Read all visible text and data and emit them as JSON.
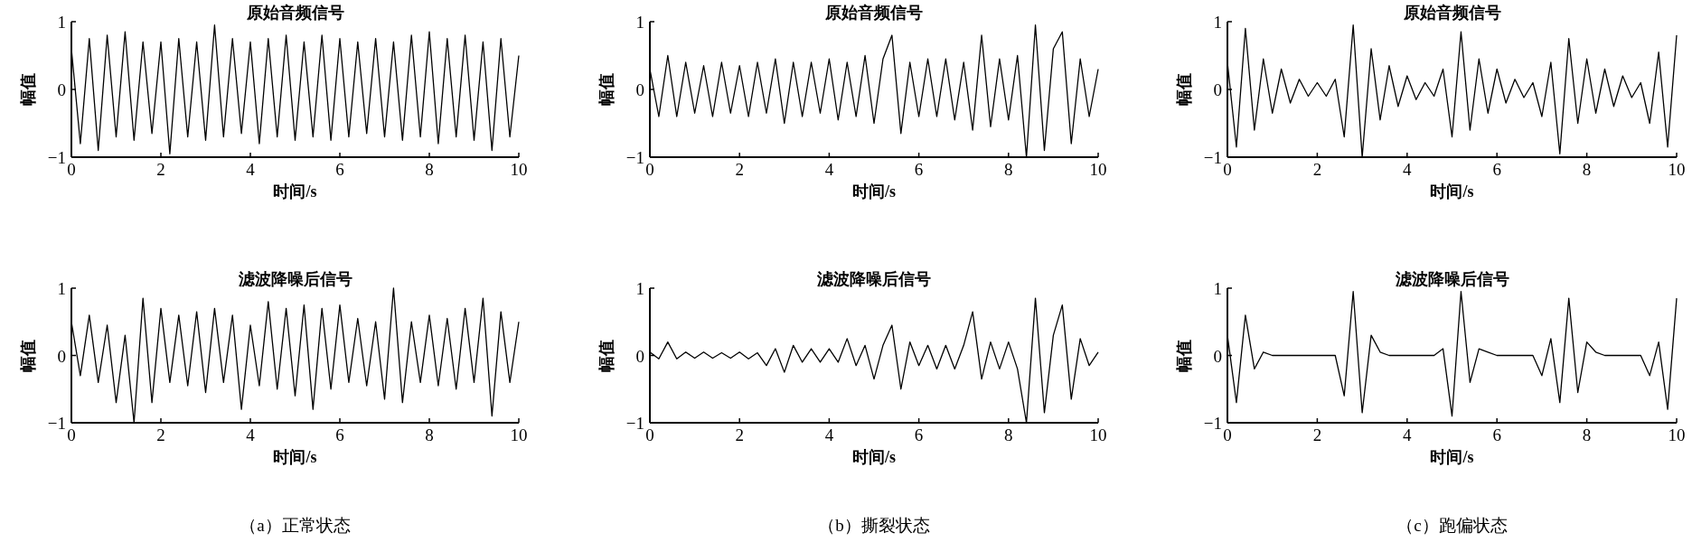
{
  "chart_data": [
    {
      "type": "line",
      "title": "原始音频信号",
      "xlabel": "时间/s",
      "ylabel": "幅值",
      "xlim": [
        0,
        10
      ],
      "ylim": [
        -1,
        1
      ],
      "xticks": [
        0,
        2,
        4,
        6,
        8,
        10
      ],
      "yticks": [
        -1,
        0,
        1
      ],
      "grid": false,
      "x": [
        0,
        0.2,
        0.4,
        0.6,
        0.8,
        1,
        1.2,
        1.4,
        1.6,
        1.8,
        2,
        2.2,
        2.4,
        2.6,
        2.8,
        3,
        3.2,
        3.4,
        3.6,
        3.8,
        4,
        4.2,
        4.4,
        4.6,
        4.8,
        5,
        5.2,
        5.4,
        5.6,
        5.8,
        6,
        6.2,
        6.4,
        6.6,
        6.8,
        7,
        7.2,
        7.4,
        7.6,
        7.8,
        8,
        8.2,
        8.4,
        8.6,
        8.8,
        9,
        9.2,
        9.4,
        9.6,
        9.8,
        10
      ],
      "series": [
        {
          "color": "#000000",
          "values": [
            0.6,
            -0.8,
            0.75,
            -0.9,
            0.8,
            -0.7,
            0.85,
            -0.75,
            0.7,
            -0.65,
            0.7,
            -0.95,
            0.75,
            -0.7,
            0.7,
            -0.75,
            0.95,
            -0.7,
            0.75,
            -0.65,
            0.7,
            -0.8,
            0.75,
            -0.7,
            0.8,
            -0.75,
            0.7,
            -0.7,
            0.8,
            -0.75,
            0.75,
            -0.7,
            0.7,
            -0.65,
            0.75,
            -0.7,
            0.7,
            -0.75,
            0.8,
            -0.7,
            0.85,
            -0.8,
            0.75,
            -0.7,
            0.8,
            -0.75,
            0.7,
            -0.9,
            0.75,
            -0.7,
            0.5
          ]
        }
      ]
    },
    {
      "type": "line",
      "title": "原始音频信号",
      "xlabel": "时间/s",
      "ylabel": "幅值",
      "xlim": [
        0,
        10
      ],
      "ylim": [
        -1,
        1
      ],
      "xticks": [
        0,
        2,
        4,
        6,
        8,
        10
      ],
      "yticks": [
        -1,
        0,
        1
      ],
      "grid": false,
      "x": [
        0,
        0.2,
        0.4,
        0.6,
        0.8,
        1,
        1.2,
        1.4,
        1.6,
        1.8,
        2,
        2.2,
        2.4,
        2.6,
        2.8,
        3,
        3.2,
        3.4,
        3.6,
        3.8,
        4,
        4.2,
        4.4,
        4.6,
        4.8,
        5,
        5.2,
        5.4,
        5.6,
        5.8,
        6,
        6.2,
        6.4,
        6.6,
        6.8,
        7,
        7.2,
        7.4,
        7.6,
        7.8,
        8,
        8.2,
        8.4,
        8.6,
        8.8,
        9,
        9.2,
        9.4,
        9.6,
        9.8,
        10
      ],
      "series": [
        {
          "color": "#000000",
          "values": [
            0.3,
            -0.4,
            0.5,
            -0.4,
            0.4,
            -0.35,
            0.35,
            -0.4,
            0.4,
            -0.35,
            0.35,
            -0.4,
            0.4,
            -0.35,
            0.45,
            -0.5,
            0.4,
            -0.4,
            0.4,
            -0.35,
            0.45,
            -0.45,
            0.4,
            -0.4,
            0.5,
            -0.5,
            0.45,
            0.8,
            -0.65,
            0.4,
            -0.4,
            0.45,
            -0.4,
            0.45,
            -0.45,
            0.4,
            -0.6,
            0.8,
            -0.55,
            0.45,
            -0.45,
            0.5,
            -1.0,
            0.95,
            -0.9,
            0.6,
            0.85,
            -0.8,
            0.45,
            -0.4,
            0.3
          ]
        }
      ]
    },
    {
      "type": "line",
      "title": "原始音频信号",
      "xlabel": "时间/s",
      "ylabel": "幅值",
      "xlim": [
        0,
        10
      ],
      "ylim": [
        -1,
        1
      ],
      "xticks": [
        0,
        2,
        4,
        6,
        8,
        10
      ],
      "yticks": [
        -1,
        0,
        1
      ],
      "grid": false,
      "x": [
        0,
        0.2,
        0.4,
        0.6,
        0.8,
        1,
        1.2,
        1.4,
        1.6,
        1.8,
        2,
        2.2,
        2.4,
        2.6,
        2.8,
        3,
        3.2,
        3.4,
        3.6,
        3.8,
        4,
        4.2,
        4.4,
        4.6,
        4.8,
        5,
        5.2,
        5.4,
        5.6,
        5.8,
        6,
        6.2,
        6.4,
        6.6,
        6.8,
        7,
        7.2,
        7.4,
        7.6,
        7.8,
        8,
        8.2,
        8.4,
        8.6,
        8.8,
        9,
        9.2,
        9.4,
        9.6,
        9.8,
        10
      ],
      "series": [
        {
          "color": "#000000",
          "values": [
            0.4,
            -0.85,
            0.9,
            -0.6,
            0.45,
            -0.35,
            0.3,
            -0.2,
            0.15,
            -0.1,
            0.1,
            -0.1,
            0.15,
            -0.7,
            0.95,
            -1.0,
            0.6,
            -0.45,
            0.35,
            -0.25,
            0.2,
            -0.15,
            0.1,
            -0.1,
            0.3,
            -0.7,
            0.85,
            -0.6,
            0.45,
            -0.35,
            0.3,
            -0.2,
            0.15,
            -0.12,
            0.1,
            -0.4,
            0.4,
            -0.95,
            0.75,
            -0.5,
            0.45,
            -0.35,
            0.3,
            -0.25,
            0.2,
            -0.12,
            0.1,
            -0.5,
            0.55,
            -0.85,
            0.8
          ]
        }
      ]
    },
    {
      "type": "line",
      "title": "滤波降噪后信号",
      "xlabel": "时间/s",
      "ylabel": "幅值",
      "xlim": [
        0,
        10
      ],
      "ylim": [
        -1,
        1
      ],
      "xticks": [
        0,
        2,
        4,
        6,
        8,
        10
      ],
      "yticks": [
        -1,
        0,
        1
      ],
      "grid": false,
      "annotations": [
        "（a）正常状态"
      ],
      "x": [
        0,
        0.2,
        0.4,
        0.6,
        0.8,
        1,
        1.2,
        1.4,
        1.6,
        1.8,
        2,
        2.2,
        2.4,
        2.6,
        2.8,
        3,
        3.2,
        3.4,
        3.6,
        3.8,
        4,
        4.2,
        4.4,
        4.6,
        4.8,
        5,
        5.2,
        5.4,
        5.6,
        5.8,
        6,
        6.2,
        6.4,
        6.6,
        6.8,
        7,
        7.2,
        7.4,
        7.6,
        7.8,
        8,
        8.2,
        8.4,
        8.6,
        8.8,
        9,
        9.2,
        9.4,
        9.6,
        9.8,
        10
      ],
      "series": [
        {
          "color": "#000000",
          "values": [
            0.5,
            -0.3,
            0.6,
            -0.4,
            0.45,
            -0.7,
            0.3,
            -1.0,
            0.85,
            -0.7,
            0.7,
            -0.4,
            0.6,
            -0.45,
            0.65,
            -0.55,
            0.7,
            -0.4,
            0.6,
            -0.8,
            0.45,
            -0.45,
            0.8,
            -0.5,
            0.7,
            -0.6,
            0.75,
            -0.8,
            0.7,
            -0.5,
            0.75,
            -0.4,
            0.55,
            -0.45,
            0.5,
            -0.65,
            1.0,
            -0.7,
            0.5,
            -0.4,
            0.6,
            -0.45,
            0.55,
            -0.5,
            0.7,
            -0.4,
            0.85,
            -0.9,
            0.65,
            -0.4,
            0.5
          ]
        }
      ]
    },
    {
      "type": "line",
      "title": "滤波降噪后信号",
      "xlabel": "时间/s",
      "ylabel": "幅值",
      "xlim": [
        0,
        10
      ],
      "ylim": [
        -1,
        1
      ],
      "xticks": [
        0,
        2,
        4,
        6,
        8,
        10
      ],
      "yticks": [
        -1,
        0,
        1
      ],
      "grid": false,
      "annotations": [
        "（b）撕裂状态"
      ],
      "x": [
        0,
        0.2,
        0.4,
        0.6,
        0.8,
        1,
        1.2,
        1.4,
        1.6,
        1.8,
        2,
        2.2,
        2.4,
        2.6,
        2.8,
        3,
        3.2,
        3.4,
        3.6,
        3.8,
        4,
        4.2,
        4.4,
        4.6,
        4.8,
        5,
        5.2,
        5.4,
        5.6,
        5.8,
        6,
        6.2,
        6.4,
        6.6,
        6.8,
        7,
        7.2,
        7.4,
        7.6,
        7.8,
        8,
        8.2,
        8.4,
        8.6,
        8.8,
        9,
        9.2,
        9.4,
        9.6,
        9.8,
        10
      ],
      "series": [
        {
          "color": "#000000",
          "values": [
            0.05,
            -0.05,
            0.2,
            -0.05,
            0.05,
            -0.04,
            0.05,
            -0.04,
            0.04,
            -0.04,
            0.05,
            -0.05,
            0.04,
            -0.15,
            0.1,
            -0.25,
            0.15,
            -0.1,
            0.1,
            -0.1,
            0.1,
            -0.1,
            0.25,
            -0.15,
            0.15,
            -0.35,
            0.15,
            0.45,
            -0.5,
            0.2,
            -0.15,
            0.15,
            -0.2,
            0.15,
            -0.2,
            0.15,
            0.65,
            -0.35,
            0.2,
            -0.2,
            0.2,
            -0.2,
            -1.0,
            0.85,
            -0.85,
            0.3,
            0.75,
            -0.65,
            0.25,
            -0.15,
            0.05
          ]
        }
      ]
    },
    {
      "type": "line",
      "title": "滤波降噪后信号",
      "xlabel": "时间/s",
      "ylabel": "幅值",
      "xlim": [
        0,
        10
      ],
      "ylim": [
        -1,
        1
      ],
      "xticks": [
        0,
        2,
        4,
        6,
        8,
        10
      ],
      "yticks": [
        -1,
        0,
        1
      ],
      "grid": false,
      "annotations": [
        "（c）跑偏状态"
      ],
      "x": [
        0,
        0.2,
        0.4,
        0.6,
        0.8,
        1,
        1.2,
        1.4,
        1.6,
        1.8,
        2,
        2.2,
        2.4,
        2.6,
        2.8,
        3,
        3.2,
        3.4,
        3.6,
        3.8,
        4,
        4.2,
        4.4,
        4.6,
        4.8,
        5,
        5.2,
        5.4,
        5.6,
        5.8,
        6,
        6.2,
        6.4,
        6.6,
        6.8,
        7,
        7.2,
        7.4,
        7.6,
        7.8,
        8,
        8.2,
        8.4,
        8.6,
        8.8,
        9,
        9.2,
        9.4,
        9.6,
        9.8,
        10
      ],
      "series": [
        {
          "color": "#000000",
          "values": [
            0.3,
            -0.7,
            0.6,
            -0.2,
            0.05,
            0,
            0,
            0,
            0,
            0,
            0,
            0,
            0,
            -0.6,
            0.95,
            -0.85,
            0.3,
            0.05,
            0,
            0,
            0,
            0,
            0,
            0,
            0.1,
            -0.9,
            0.95,
            -0.4,
            0.1,
            0.05,
            0,
            0,
            0,
            0,
            0,
            -0.3,
            0.25,
            -0.7,
            0.85,
            -0.55,
            0.2,
            0.05,
            0,
            0,
            0,
            0,
            0,
            -0.3,
            0.2,
            -0.8,
            0.85
          ]
        }
      ]
    }
  ]
}
